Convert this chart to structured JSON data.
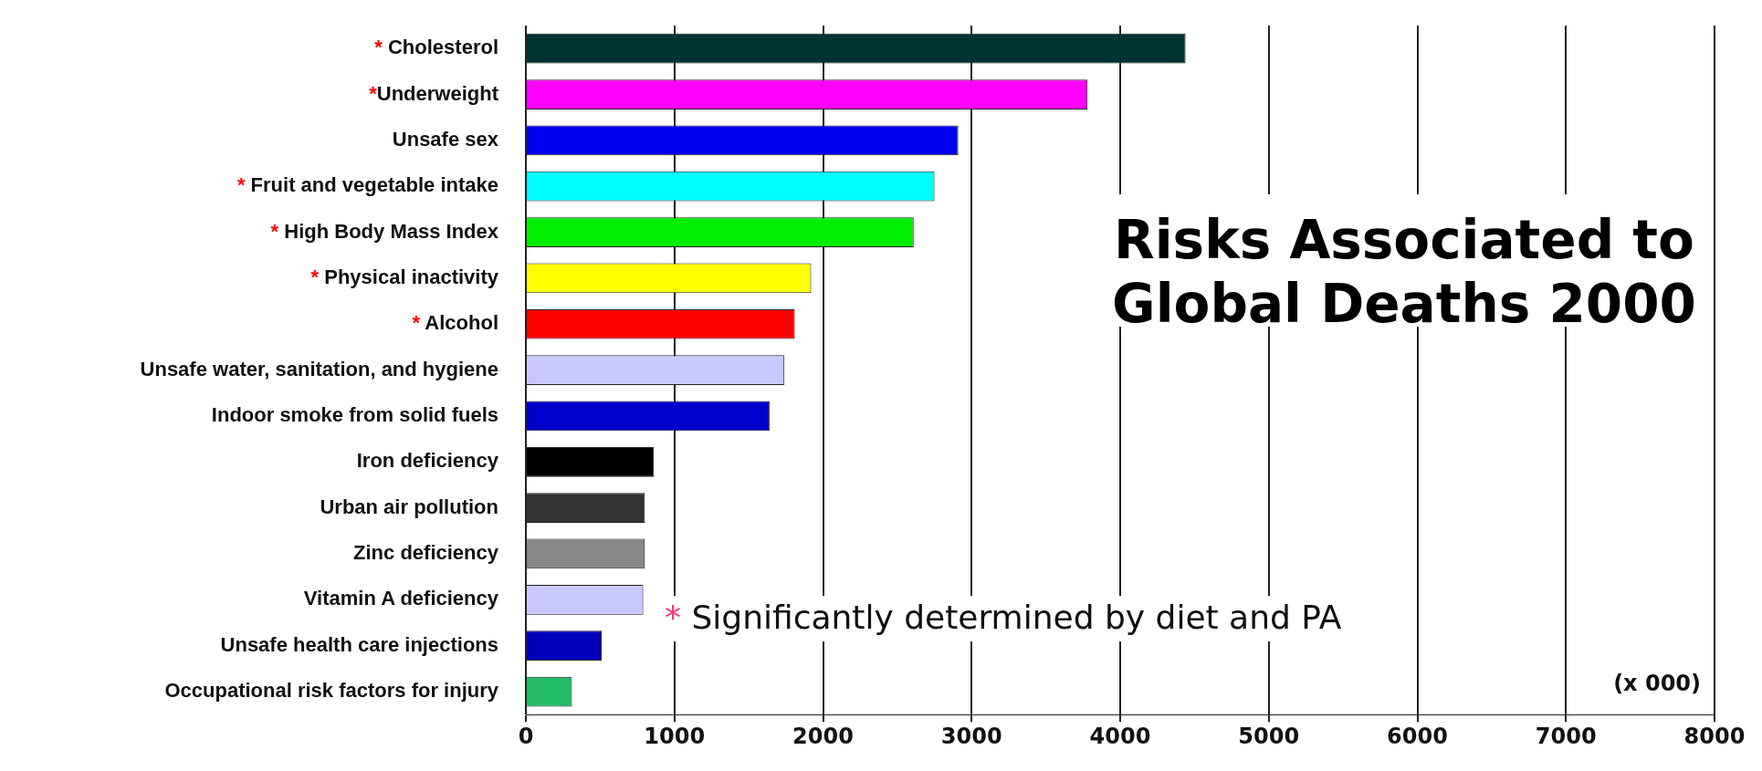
{
  "chart_data": {
    "type": "bar",
    "orientation": "horizontal",
    "title": "Risks Associated to Global Deaths 2000",
    "categories": [
      "* Cholesterol",
      "*Underweight",
      "Unsafe sex",
      "* Fruit and vegetable intake",
      "* High Body Mass Index",
      "* Physical inactivity",
      "* Alcohol",
      "Unsafe water, sanitation, and hygiene",
      "Indoor smoke from solid fuels",
      "Iron deficiency",
      "Urban air pollution",
      "Zinc deficiency",
      "Vitamin A deficiency",
      "Unsafe health care injections",
      "Occupational risk factors for injury"
    ],
    "values": [
      4440,
      3780,
      2910,
      2750,
      2610,
      1920,
      1810,
      1740,
      1640,
      860,
      800,
      800,
      790,
      510,
      310
    ],
    "colors": [
      "#003333",
      "#ff00ff",
      "#0000ee",
      "#00ffff",
      "#00ee00",
      "#ffff00",
      "#ff0000",
      "#c8c8ff",
      "#0000cc",
      "#000000",
      "#333333",
      "#888888",
      "#c8c8ff",
      "#0000bb",
      "#22bb66"
    ],
    "xlim": [
      0,
      8000
    ],
    "xticks": [
      0,
      1000,
      2000,
      3000,
      4000,
      5000,
      6000,
      7000,
      8000
    ],
    "grid": "x",
    "annotations": [
      "* Significantly determined by diet and PA",
      "(x 000)"
    ]
  }
}
